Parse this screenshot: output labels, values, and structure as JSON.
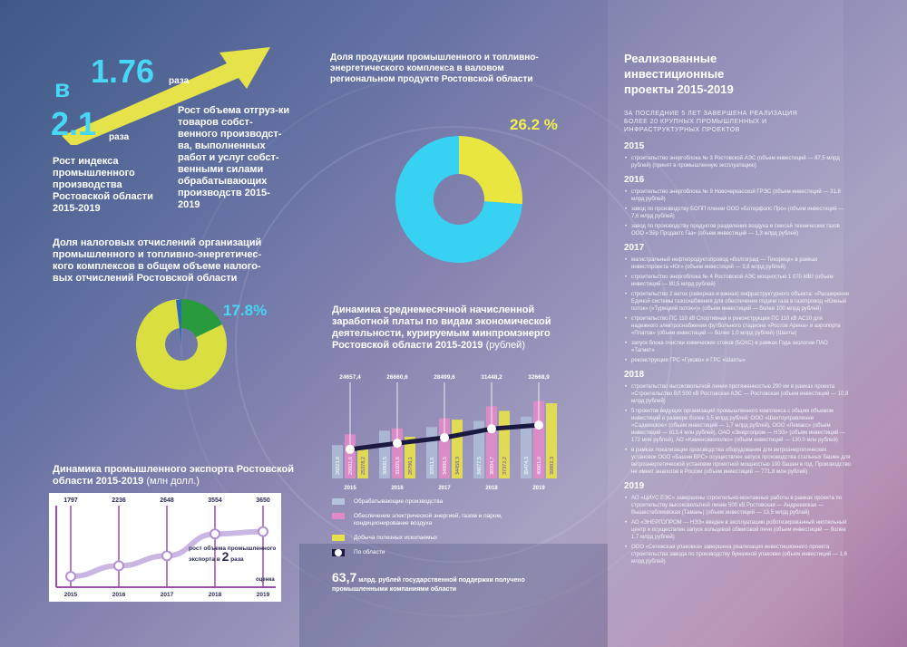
{
  "growth": {
    "prefix": "в",
    "value_a": "1.76",
    "unit_a": "раза",
    "value_b": "2.1",
    "unit_b": "раза",
    "label_a": "Рост объема отгруз-ки товаров собст-венного производст-ва, выполненных работ и услуг собст-венными силами обрабатывающих производств 2015-2019",
    "label_b": "Рост индекса промышленного производства Ростовской области 2015-2019"
  },
  "tax_share": {
    "title": "Доля налоговых отчислений организаций промышленного и топливно-энергетичес-кого комплексов в общем объеме налого-вых отчислений Ростовской области",
    "value_label": "17.8%"
  },
  "grp_share": {
    "title": "Доля продукции промышленного и топливно-энергетического комплекса в валовом региональном продукте Ростовской области",
    "value_label": "26.2 %"
  },
  "export": {
    "title": "Динамика промышленного экспорта Ростовской области 2015-2019",
    "unit": "(млн долл.)",
    "note_text": "рост объема промышленного экспорта в",
    "note_value": "2",
    "note_unit": "раза",
    "estimate_label": "оценка"
  },
  "salary": {
    "title": "Динамика среднемесячной начисленной заработной платы по видам экономической деятельности, курируемым минпромэнерго Ростовской области 2015-2019",
    "unit": "(рублей)",
    "legend": [
      {
        "label": "Обрабатывающие производства",
        "color": "#b3c4dc"
      },
      {
        "label": "Обеспечение электрической энергией, газом и паром, кондиционирование воздуха",
        "color": "#e08bc8"
      },
      {
        "label": "Добыча полезных ископаемых",
        "color": "#e8e24a"
      },
      {
        "label": "По области",
        "color": "#ffffff"
      }
    ]
  },
  "support": {
    "value": "63,7",
    "text_a": "млрд. рублей государственной поддержки получено",
    "text_b": "промышленными компаниями области"
  },
  "projects": {
    "title": "Реализованные инвестиционные проекты 2015-2019",
    "subtitle": "ЗА ПОСЛЕДНИЕ 5 ЛЕТ ЗАВЕРШЕНА РЕАЛИЗАЦИЯ БОЛЕЕ 20 КРУПНЫХ ПРОМЫШЛЕННЫХ И ИНФРАСТРУКТУРНЫХ ПРОЕКТОВ",
    "years": [
      {
        "year": "2015",
        "items": [
          "строительство энергоблока № 3 Ростовской АЭС (объем инвестиций — 87,5 млрд рублей) (принят в промышленную эксплуатацию)"
        ]
      },
      {
        "year": "2016",
        "items": [
          "строительство энергоблока № 9 Новочеркасской ГРЭС (объем инвестиций — 31,8 млрд рублей)",
          "завод по производству БОПП пленки ООО «Ботерфолс Про» (объем инвестиций — 7,6 млрд рублей)",
          "завод по производству продуктов разделения воздуха и смесей технических газов ООО «Эйр Продактс Газ» (объем инвестиций — 1,3 млрд рублей)"
        ]
      },
      {
        "year": "2017",
        "items": [
          "магистральный нефтепродуктопровод «Волгоград — Тихорецк» в рамках инвестпроекта «Юг» (объем инвестиций — 3,8 млрд рублей)",
          "строительство энергоблока № 4 Ростовской АЭС мощностью 1 070 МВт (объем инвестиций — 80,5 млрд рублей)",
          "строительство 2 веток (северная и южная) инфраструктурного объекта: «Расширение Единой системы газоснабжения для обеспечения подачи газа в газопровод «Южный поток» («Турецкий поток»)» (объем инвестиций — более 100 млрд рублей)",
          "строительство ПС 110 кВ Спортивная и реконструкция ПС 110 кВ АС10 для надежного электроснабжения футбольного стадиона «Ростов Арена» и аэропорта «Платов» (объем инвестиций — более 1,0 млрд рублей) (Шахты)",
          "запуск блока очистки химических стоков (БОХС) в рамках Года экологии ПАО «Тагмет»",
          "реконструкция ГРС «Гуково» и ГРС «Шахты»"
        ]
      },
      {
        "year": "2018",
        "items": [
          "строительство высоковольтной линии протяженностью 290 км в рамках проекта «Строительство ВЛ 500 кВ Ростовская АЭС — Ростовская (объем инвестиций — 10,8 млрд рублей)",
          "5 проектов ведущих организаций промышленного комплекса с общим объемом инвестиций в размере более 3,5 млрд рублей: ООО «Шахтоуправление «Садкинское» (объем инвестиций — 1,7 млрд рублей), ООО «Лемакс» (объем инвестиций — 813,4 млн рублей), ОАО «Энергопром — НЭЗ» (объем инвестиций — 172 млн рублей), АО «Каменсквололко» (объем инвестиций — 130,0 млн рублей)",
          "в рамках локализации производства оборудования для ветроэнергетических установок ООО «Башни ВРС» осуществлен запуск производства стальных башен для ветроэнергетической установки проектной мощностью 100 башен в год. Производство не имеет аналогов в России (объем инвестиций — 771,8 млн рублей)"
        ]
      },
      {
        "year": "2019",
        "items": [
          "АО «ЦИУС ЕЭС» завершены строительно-монтажные работы в рамках проекта по строительству высоковольтной линии 500 кВ Ростовская — Андреевская — Вышестеблиевская (Тамань) (объем инвестиций — 13,5 млрд рублей)",
          "АО «ЭНЕРГОПРОМ — НЭЗ» введен в эксплуатацию роботизированный ниппельный центр и осуществлен запуск кольцевой обжиговой печи (объем инвестиций — более 1,7 млрд рублей)",
          "ООО «Сегежская упаковка» завершена реализация инвестиционного проекта строительства завода по производству бумажной упаковки (объем инвестиций — 1,6 млрд рублей)"
        ]
      }
    ]
  },
  "chart_data": [
    {
      "type": "pie",
      "title": "Доля налоговых отчислений организаций промышленного и топливно-энергетического комплексов в общем объеме налоговых отчислений Ростовской области",
      "slices": [
        {
          "label": "17.8%",
          "value": 17.8,
          "color": "#2a9a3f"
        },
        {
          "label": "",
          "value": 82.2,
          "color": "#d9df3f"
        }
      ]
    },
    {
      "type": "pie",
      "title": "Доля продукции промышленного и топливно-энергетического комплекса в валовом региональном продукте Ростовской области",
      "slices": [
        {
          "label": "26.2 %",
          "value": 26.2,
          "color": "#e9e63f"
        },
        {
          "label": "",
          "value": 73.8,
          "color": "#37d2f2"
        }
      ]
    },
    {
      "type": "line",
      "title": "Динамика промышленного экспорта Ростовской области 2015-2019",
      "x": [
        "2015",
        "2016",
        "2017",
        "2018",
        "2019"
      ],
      "values": [
        1797,
        2236,
        2648,
        3554,
        3650
      ],
      "data_labels": [
        "1797",
        "2236",
        "2648",
        "3554",
        "3650"
      ]
    },
    {
      "type": "bar",
      "title": "Динамика среднемесячной начисленной заработной платы по видам экономической деятельности, курируемым минпромэнерго Ростовской области 2015-2019",
      "categories": [
        "2015",
        "2016",
        "2017",
        "2018",
        "2019"
      ],
      "series": [
        {
          "name": "Обрабатывающие производства",
          "values": [
            26023.8,
            30800.5,
            32011.5,
            34077.5,
            35474.3
          ],
          "labels": [
            "26023,8",
            "30800,5",
            "32011,5",
            "34077,5",
            "35474,3"
          ]
        },
        {
          "name": "Обеспечение электрической энергией, газом и паром, кондиционирование воздуха",
          "values": [
            29601.6,
            31605.6,
            34886.5,
            38904.7,
            40661.0
          ],
          "labels": [
            "29601,6",
            "31605,6",
            "34886,5",
            "38904,7",
            "40661,0"
          ]
        },
        {
          "name": "Добыча полезных ископаемых",
          "values": [
            25378.2,
            28796.1,
            34458.3,
            37372.2,
            39882.3
          ],
          "labels": [
            "25378,2",
            "28796,1",
            "34458,3",
            "37372,2",
            "39882,3"
          ]
        },
        {
          "name": "По области",
          "type": "line",
          "values": [
            24657.4,
            26660.6,
            28499.6,
            31448.2,
            32668.9
          ],
          "labels": [
            "24657,4",
            "26660,6",
            "28499,6",
            "31448,2",
            "32668,9"
          ]
        }
      ]
    }
  ]
}
